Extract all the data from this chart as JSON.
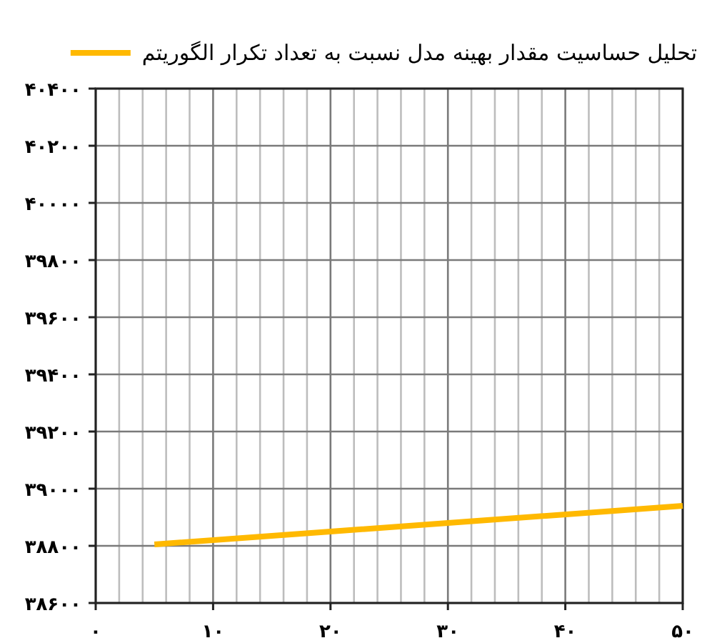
{
  "chart_data": {
    "type": "line",
    "x": [
      5,
      20,
      30,
      50
    ],
    "series": [
      {
        "name": "تحلیل حساسیت مقدار بهینه مدل نسبت به تعداد تکرار الگوریتم",
        "color": "#ffb900",
        "values": [
          38805,
          38850,
          38880,
          38940
        ]
      }
    ],
    "xlim": [
      0,
      50
    ],
    "ylim": [
      38600,
      40400
    ],
    "xticks": [
      {
        "value": 0,
        "label": "۰"
      },
      {
        "value": 10,
        "label": "۱۰"
      },
      {
        "value": 20,
        "label": "۲۰"
      },
      {
        "value": 30,
        "label": "۳۰"
      },
      {
        "value": 40,
        "label": "۴۰"
      },
      {
        "value": 50,
        "label": "۵۰"
      }
    ],
    "yticks": [
      {
        "value": 38600,
        "label": "۳۸۶۰۰"
      },
      {
        "value": 38800,
        "label": "۳۸۸۰۰"
      },
      {
        "value": 39000,
        "label": "۳۹۰۰۰"
      },
      {
        "value": 39200,
        "label": "۳۹۲۰۰"
      },
      {
        "value": 39400,
        "label": "۳۹۴۰۰"
      },
      {
        "value": 39600,
        "label": "۳۹۶۰۰"
      },
      {
        "value": 39800,
        "label": "۳۹۸۰۰"
      },
      {
        "value": 40000,
        "label": "۴۰۰۰۰"
      },
      {
        "value": 40200,
        "label": "۴۰۲۰۰"
      },
      {
        "value": 40400,
        "label": "۴۰۴۰۰"
      }
    ],
    "grid": true,
    "legend": "top right",
    "marker": "none",
    "line_style": "solid"
  }
}
